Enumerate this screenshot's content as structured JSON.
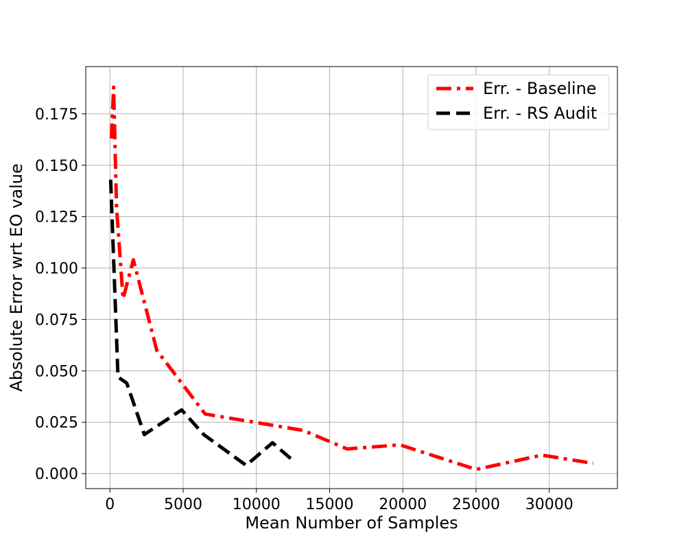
{
  "chart_data": {
    "type": "line",
    "title": "",
    "xlabel": "Mean Number of Samples",
    "ylabel": "Absolute Error wrt EO value",
    "xlim": [
      -1650,
      34650
    ],
    "ylim": [
      -0.0073,
      0.198
    ],
    "xticks": [
      0,
      5000,
      10000,
      15000,
      20000,
      25000,
      30000
    ],
    "xtick_labels": [
      "0",
      "5000",
      "10000",
      "15000",
      "20000",
      "25000",
      "30000"
    ],
    "yticks": [
      0.0,
      0.025,
      0.05,
      0.075,
      0.1,
      0.125,
      0.15,
      0.175
    ],
    "ytick_labels": [
      "0.000",
      "0.025",
      "0.050",
      "0.075",
      "0.100",
      "0.125",
      "0.150",
      "0.175"
    ],
    "grid": true,
    "legend_position": "top-right",
    "series": [
      {
        "name": "Err. - Baseline",
        "color": "#ff0000",
        "style": "dash-dot",
        "x": [
          100,
          250,
          450,
          900,
          1600,
          3200,
          6500,
          13200,
          16200,
          19800,
          25000,
          29500,
          33000
        ],
        "y": [
          0.163,
          0.188,
          0.13,
          0.085,
          0.104,
          0.06,
          0.029,
          0.021,
          0.012,
          0.014,
          0.002,
          0.009,
          0.005
        ]
      },
      {
        "name": "Err. - RS Audit",
        "color": "#000000",
        "style": "dashed",
        "x": [
          50,
          550,
          1150,
          2350,
          4900,
          6400,
          9300,
          11100,
          12400
        ],
        "y": [
          0.143,
          0.047,
          0.044,
          0.019,
          0.031,
          0.019,
          0.004,
          0.015,
          0.007
        ]
      }
    ]
  }
}
